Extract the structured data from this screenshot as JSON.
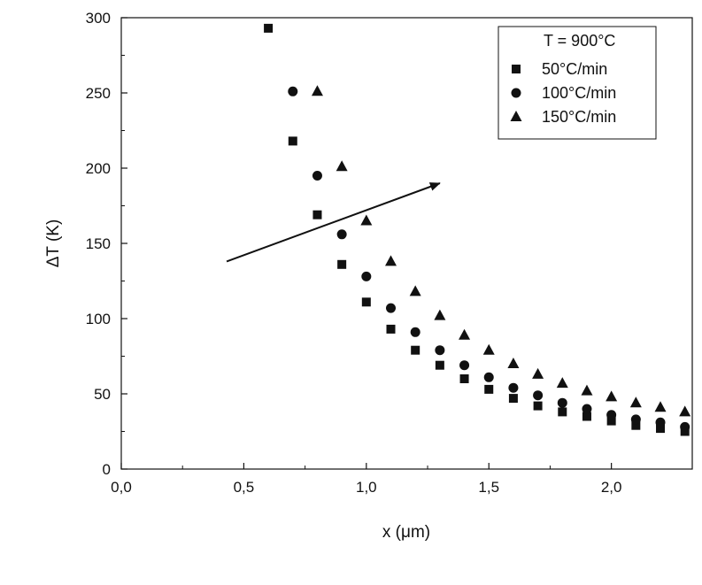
{
  "chart_data": {
    "type": "scatter",
    "title": "",
    "xlabel": "x (μm)",
    "ylabel": "ΔT (K)",
    "xlim": [
      0.0,
      2.33
    ],
    "ylim": [
      0,
      300
    ],
    "x_ticks": [
      0.0,
      0.5,
      1.0,
      1.5,
      2.0
    ],
    "x_tick_labels": [
      "0,0",
      "0,5",
      "1,0",
      "1,5",
      "2,0"
    ],
    "y_ticks": [
      0,
      50,
      100,
      150,
      200,
      250,
      300
    ],
    "y_tick_labels": [
      "0",
      "50",
      "100",
      "150",
      "200",
      "250",
      "300"
    ],
    "grid": false,
    "legend": {
      "title": "T = 900°C",
      "position": "top-right"
    },
    "series": [
      {
        "name": "50°C/min",
        "marker": "square",
        "x": [
          0.6,
          0.7,
          0.8,
          0.9,
          1.0,
          1.1,
          1.2,
          1.3,
          1.4,
          1.5,
          1.6,
          1.7,
          1.8,
          1.9,
          2.0,
          2.1,
          2.2,
          2.3
        ],
        "y": [
          293,
          218,
          169,
          136,
          111,
          93,
          79,
          69,
          60,
          53,
          47,
          42,
          38,
          35,
          32,
          29,
          27,
          25
        ]
      },
      {
        "name": "100°C/min",
        "marker": "circle",
        "x": [
          0.7,
          0.8,
          0.9,
          1.0,
          1.1,
          1.2,
          1.3,
          1.4,
          1.5,
          1.6,
          1.7,
          1.8,
          1.9,
          2.0,
          2.1,
          2.2,
          2.3
        ],
        "y": [
          251,
          195,
          156,
          128,
          107,
          91,
          79,
          69,
          61,
          54,
          49,
          44,
          40,
          36,
          33,
          31,
          28
        ]
      },
      {
        "name": "150°C/min",
        "marker": "triangle",
        "x": [
          0.8,
          0.9,
          1.0,
          1.1,
          1.2,
          1.3,
          1.4,
          1.5,
          1.6,
          1.7,
          1.8,
          1.9,
          2.0,
          2.1,
          2.2,
          2.3
        ],
        "y": [
          251,
          201,
          165,
          138,
          118,
          102,
          89,
          79,
          70,
          63,
          57,
          52,
          48,
          44,
          41,
          38
        ]
      }
    ],
    "annotations": [
      {
        "type": "arrow",
        "from": [
          0.43,
          138
        ],
        "to": [
          1.3,
          190
        ],
        "meaning": "increasing heating rate"
      }
    ]
  }
}
